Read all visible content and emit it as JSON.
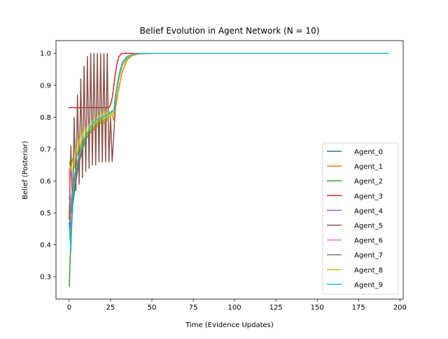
{
  "chart_data": {
    "type": "line",
    "title": "Belief Evolution in Agent Network (N = 10)",
    "xlabel": "Time (Evidence Updates)",
    "ylabel": "Belief (Posterior)",
    "xlim": [
      -8,
      202
    ],
    "ylim": [
      0.23,
      1.04
    ],
    "xticks": [
      0,
      25,
      50,
      75,
      100,
      125,
      150,
      175,
      200
    ],
    "yticks": [
      0.3,
      0.4,
      0.5,
      0.6,
      0.7,
      0.8,
      0.9,
      1.0
    ],
    "grid": false,
    "legend_position": "lower-right",
    "series": [
      {
        "name": "Agent_0",
        "color": "#1f77b4",
        "x": [
          0,
          1,
          2,
          4,
          6,
          8,
          10,
          13,
          16,
          20,
          24,
          26,
          27,
          28,
          30,
          32,
          35,
          38,
          42,
          50,
          193
        ],
        "y": [
          0.47,
          0.4,
          0.52,
          0.6,
          0.66,
          0.7,
          0.73,
          0.76,
          0.78,
          0.8,
          0.81,
          0.82,
          0.82,
          0.86,
          0.92,
          0.96,
          0.985,
          0.995,
          0.999,
          1.0,
          1.0
        ]
      },
      {
        "name": "Agent_1",
        "color": "#ff7f0e",
        "x": [
          0,
          1,
          2,
          4,
          6,
          8,
          10,
          13,
          16,
          20,
          24,
          26,
          27,
          28,
          30,
          32,
          35,
          38,
          42,
          50,
          193
        ],
        "y": [
          0.62,
          0.41,
          0.55,
          0.63,
          0.67,
          0.71,
          0.73,
          0.76,
          0.77,
          0.79,
          0.8,
          0.81,
          0.79,
          0.83,
          0.89,
          0.94,
          0.98,
          0.993,
          0.998,
          1.0,
          1.0
        ]
      },
      {
        "name": "Agent_2",
        "color": "#2ca02c",
        "x": [
          0,
          1,
          2,
          3,
          4,
          6,
          8,
          10,
          13,
          16,
          20,
          24,
          26,
          27,
          28,
          30,
          32,
          35,
          38,
          42,
          50,
          193
        ],
        "y": [
          0.27,
          0.42,
          0.52,
          0.57,
          0.61,
          0.66,
          0.7,
          0.73,
          0.76,
          0.78,
          0.8,
          0.81,
          0.82,
          0.82,
          0.86,
          0.92,
          0.96,
          0.985,
          0.995,
          0.999,
          1.0,
          1.0
        ]
      },
      {
        "name": "Agent_3",
        "color": "#d62728",
        "x": [
          0,
          5,
          10,
          15,
          20,
          24,
          25,
          26,
          27,
          28,
          29,
          30,
          31,
          32,
          35,
          193
        ],
        "y": [
          0.83,
          0.83,
          0.83,
          0.83,
          0.83,
          0.83,
          0.84,
          0.86,
          0.9,
          0.94,
          0.97,
          0.99,
          0.995,
          1.0,
          1.0,
          1.0
        ]
      },
      {
        "name": "Agent_4",
        "color": "#9467bd",
        "x": [
          0,
          1,
          2,
          4,
          6,
          8,
          10,
          13,
          16,
          20,
          24,
          26,
          27,
          28,
          30,
          32,
          35,
          38,
          42,
          50,
          193
        ],
        "y": [
          0.5,
          0.45,
          0.56,
          0.63,
          0.67,
          0.71,
          0.74,
          0.77,
          0.79,
          0.8,
          0.81,
          0.82,
          0.82,
          0.86,
          0.92,
          0.96,
          0.985,
          0.995,
          0.999,
          1.0,
          1.0
        ]
      },
      {
        "name": "Agent_5",
        "color": "#8c564b",
        "x": [
          0,
          1,
          2,
          3,
          4,
          5,
          6,
          7,
          8,
          9,
          10,
          11,
          12,
          13,
          14,
          15,
          16,
          17,
          18,
          19,
          20,
          21,
          22,
          23,
          24,
          25,
          26,
          27,
          28,
          29,
          30,
          32,
          35,
          38,
          42,
          50,
          193
        ],
        "y": [
          0.48,
          0.71,
          0.5,
          0.8,
          0.57,
          0.87,
          0.59,
          0.92,
          0.61,
          0.96,
          0.63,
          0.99,
          0.64,
          1.0,
          0.65,
          1.0,
          0.65,
          1.0,
          0.66,
          1.0,
          0.66,
          1.0,
          0.66,
          1.0,
          0.66,
          0.8,
          0.66,
          0.75,
          0.84,
          0.9,
          0.93,
          0.97,
          0.99,
          0.997,
          0.999,
          1.0,
          1.0
        ]
      },
      {
        "name": "Agent_6",
        "color": "#e377c2",
        "x": [
          0,
          1,
          2,
          4,
          6,
          8,
          10,
          13,
          16,
          20,
          24,
          26,
          27,
          28,
          30,
          32,
          35,
          38,
          42,
          50,
          193
        ],
        "y": [
          0.64,
          0.52,
          0.58,
          0.64,
          0.68,
          0.71,
          0.74,
          0.77,
          0.79,
          0.8,
          0.81,
          0.82,
          0.82,
          0.87,
          0.93,
          0.97,
          0.99,
          0.997,
          0.999,
          1.0,
          1.0
        ]
      },
      {
        "name": "Agent_7",
        "color": "#7f7f7f",
        "x": [
          0,
          1,
          2,
          4,
          6,
          8,
          10,
          13,
          16,
          20,
          24,
          26,
          27,
          28,
          30,
          32,
          35,
          38,
          42,
          50,
          193
        ],
        "y": [
          0.55,
          0.5,
          0.57,
          0.64,
          0.68,
          0.71,
          0.74,
          0.77,
          0.79,
          0.8,
          0.81,
          0.82,
          0.82,
          0.87,
          0.93,
          0.97,
          0.99,
          0.997,
          0.999,
          1.0,
          1.0
        ]
      },
      {
        "name": "Agent_8",
        "color": "#bcbd22",
        "x": [
          0,
          1,
          2,
          3,
          4,
          5,
          6,
          7,
          8,
          9,
          10,
          11,
          12,
          13,
          14,
          15,
          16,
          17,
          18,
          19,
          20,
          21,
          22,
          23,
          24,
          25,
          26,
          27,
          28,
          30,
          32,
          35,
          38,
          42,
          50,
          193
        ],
        "y": [
          0.66,
          0.63,
          0.67,
          0.64,
          0.71,
          0.68,
          0.74,
          0.7,
          0.76,
          0.72,
          0.77,
          0.74,
          0.78,
          0.75,
          0.79,
          0.76,
          0.8,
          0.77,
          0.81,
          0.78,
          0.82,
          0.78,
          0.82,
          0.79,
          0.82,
          0.8,
          0.82,
          0.81,
          0.85,
          0.92,
          0.96,
          0.985,
          0.995,
          0.999,
          1.0,
          1.0
        ]
      },
      {
        "name": "Agent_9",
        "color": "#17becf",
        "x": [
          0,
          1,
          2,
          3,
          4,
          6,
          8,
          10,
          13,
          16,
          20,
          24,
          26,
          27,
          28,
          30,
          32,
          35,
          38,
          42,
          50,
          193
        ],
        "y": [
          0.46,
          0.38,
          0.55,
          0.58,
          0.64,
          0.68,
          0.71,
          0.74,
          0.77,
          0.79,
          0.8,
          0.81,
          0.82,
          0.82,
          0.87,
          0.93,
          0.97,
          0.99,
          0.997,
          0.999,
          1.0,
          1.0
        ]
      }
    ]
  }
}
